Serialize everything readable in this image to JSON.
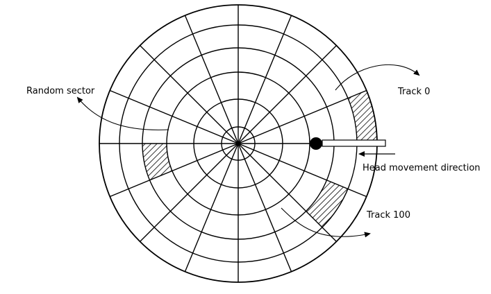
{
  "labels": {
    "random_sector": "Random sector",
    "track_0": "Track 0",
    "head_direction": "Head movement direction",
    "track_100": "Track 100"
  },
  "disk": {
    "ring_count": 6,
    "sector_count": 16,
    "stroke_color": "#000000",
    "hatched_sectors": [
      "random-sector",
      "track-0-sector",
      "track-100-sector"
    ]
  }
}
